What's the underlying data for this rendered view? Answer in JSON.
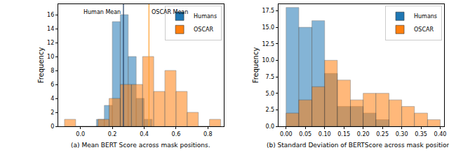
{
  "chart_data": [
    {
      "type": "histogram",
      "caption": "(a) Mean BERT Score across mask positions.",
      "y_label": "Frequency",
      "xlim": [
        -0.14,
        0.9
      ],
      "ylim": [
        0,
        17.5
      ],
      "xticks": [
        {
          "value": 0,
          "label": "0.0"
        },
        0.2,
        0.4,
        0.6,
        0.8
      ],
      "yticks": [
        0,
        2,
        4,
        6,
        8,
        10,
        12,
        14,
        16
      ],
      "legend": "upper right",
      "series": [
        {
          "name": "Humans",
          "color": "#1f77b4",
          "bins": [
            0.1,
            0.15,
            0.2,
            0.25,
            0.3,
            0.35,
            0.4,
            0.45
          ],
          "values": [
            1,
            3,
            15,
            16,
            10,
            4,
            1
          ]
        },
        {
          "name": "OSCAR",
          "color": "#ff7f0e",
          "bins": [
            -0.1,
            -0.03,
            0.04,
            0.11,
            0.18,
            0.25,
            0.32,
            0.39,
            0.46,
            0.53,
            0.6,
            0.67,
            0.74,
            0.81,
            0.88
          ],
          "values": [
            1,
            0,
            0,
            1,
            4,
            6,
            6,
            10,
            5,
            8,
            5,
            2,
            0,
            1
          ]
        }
      ],
      "mean_lines": [
        {
          "x": 0.27,
          "label": "Human Mean",
          "color": "#1f3a60",
          "side": "left"
        },
        {
          "x": 0.43,
          "label": "OSCAR Mean",
          "color": "#ff9f2e",
          "side": "right"
        }
      ]
    },
    {
      "type": "histogram",
      "caption": "(b) Standard Deviation of BERTScore across mask positions.",
      "y_label": "Frequency",
      "xlim": [
        -0.02,
        0.41
      ],
      "ylim": [
        0,
        18.5
      ],
      "xticks": [
        {
          "value": 0,
          "label": "0.00"
        },
        0.05,
        {
          "value": 0.1,
          "label": "0.10"
        },
        0.15,
        {
          "value": 0.2,
          "label": "0.20"
        },
        0.25,
        {
          "value": 0.3,
          "label": "0.30"
        },
        0.35,
        {
          "value": 0.4,
          "label": "0.40"
        }
      ],
      "yticks": [
        {
          "value": 0,
          "label": "0.0"
        },
        2.5,
        {
          "value": 5,
          "label": "5.0"
        },
        7.5,
        {
          "value": 10,
          "label": "10.0"
        },
        12.5,
        {
          "value": 15,
          "label": "15.0"
        },
        17.5
      ],
      "legend": "upper right",
      "series": [
        {
          "name": "Humans",
          "color": "#1f77b4",
          "bins": [
            0,
            0.033,
            0.067,
            0.1,
            0.133,
            0.167,
            0.2,
            0.233,
            0.267
          ],
          "values": [
            18,
            15,
            16,
            8,
            3,
            3,
            2,
            1
          ]
        },
        {
          "name": "OSCAR",
          "color": "#ff7f0e",
          "bins": [
            0,
            0.033,
            0.067,
            0.1,
            0.133,
            0.167,
            0.2,
            0.233,
            0.267,
            0.3,
            0.333,
            0.367,
            0.4
          ],
          "values": [
            2,
            4,
            6,
            10,
            7,
            4,
            5,
            5,
            4,
            3,
            2,
            1
          ]
        }
      ]
    }
  ]
}
